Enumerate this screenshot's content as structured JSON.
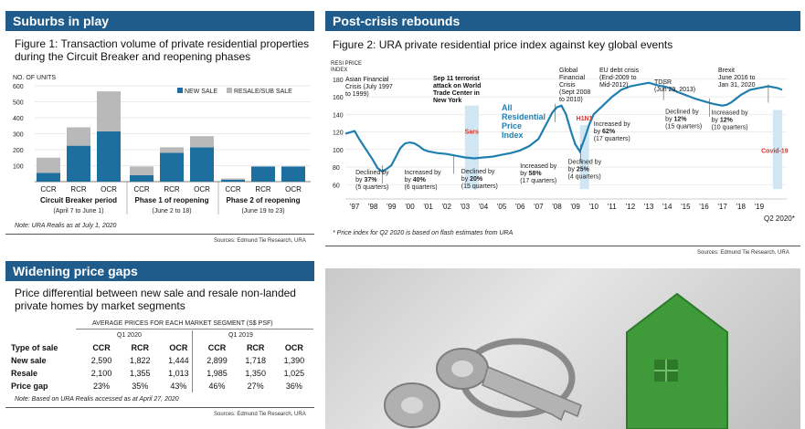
{
  "panel1": {
    "header": "Suburbs in play",
    "title": "Figure 1:  Transaction volume of private residential properties during the Circuit Breaker and reopening phases",
    "ylabel": "NO. OF UNITS",
    "legend_new": "NEW SALE",
    "legend_resale": "RESALE/SUB SALE",
    "groups": [
      {
        "name": "Circuit Breaker period",
        "dates": "(April 7  to June 1)"
      },
      {
        "name": "Phase 1 of reopening",
        "dates": "(June 2 to 18)"
      },
      {
        "name": "Phase 2 of reopening",
        "dates": "(June 19 to 23)"
      }
    ],
    "note": "Note: URA Realis as at July 1, 2020",
    "source": "Sources: Edmund Tie Research, URA"
  },
  "panel2": {
    "header": "Post-crisis rebounds",
    "title": "Figure 2: URA private residential price index against key global events",
    "ylabel": "RESI PRICE INDEX",
    "line_label": "All Residential Price Index",
    "footnote": "* Price index for Q2 2020 is based on flash estimates from URA",
    "source": "Sources: Edmund Tie Research, URA",
    "events": [
      {
        "title": "Asian Financial Crisis",
        "detail": " (July 1997 to 1999)"
      },
      {
        "title": "Sep 11 terrorist attack on World Trade Center in New York",
        "detail": ""
      },
      {
        "title": "Global Financial Crisis",
        "detail": " (Sept 2008 to 2010)"
      },
      {
        "title": "EU debt crisis",
        "detail": " (End-2009 to Mid-2012)"
      },
      {
        "title": "TDSR",
        "detail": " (Jun 29, 2013)"
      },
      {
        "title": "Brexit",
        "detail": " June 2016 to Jan 31, 2020"
      }
    ],
    "shaded_labels": {
      "sars": "Sars",
      "h1n1": "H1N1",
      "covid": "Covid-19"
    },
    "annotations": [
      {
        "pre": "Declined by ",
        "pct": "37%",
        "dur": "(5 quarters)"
      },
      {
        "pre": "Increased by ",
        "pct": "40%",
        "dur": "(6 quarters)"
      },
      {
        "pre": "Declined by ",
        "pct": "20%",
        "dur": "(15 quarters)"
      },
      {
        "pre": "Increased by ",
        "pct": "58%",
        "dur": "(17 quarters)"
      },
      {
        "pre": "Declined by ",
        "pct": "25%",
        "dur": "(4 quarters)"
      },
      {
        "pre": "Increased by ",
        "pct": "62%",
        "dur": "(17 quarters)"
      },
      {
        "pre": "Declined by ",
        "pct": "12%",
        "dur": "(15 quarters)"
      },
      {
        "pre": "Increased by ",
        "pct": "12%",
        "dur": "(10 quarters)"
      }
    ],
    "last_tick": "Q2 2020*"
  },
  "panel3": {
    "header": "Widening price gaps",
    "title": "Price differential between new sale and resale non-landed private homes by market segments",
    "table_caption": "AVERAGE PRICES FOR EACH MARKET SEGMENT (S$ PSF)",
    "periods": [
      "Q1 2020",
      "Q1 2019"
    ],
    "col_headers": [
      "Type of sale",
      "CCR",
      "RCR",
      "OCR",
      "CCR",
      "RCR",
      "OCR"
    ],
    "rows": [
      [
        "New sale",
        "2,590",
        "1,822",
        "1,444",
        "2,899",
        "1,718",
        "1,390"
      ],
      [
        "Resale",
        "2,100",
        "1,355",
        "1,013",
        "1,985",
        "1,350",
        "1,025"
      ],
      [
        "Price gap",
        "23%",
        "35%",
        "43%",
        "46%",
        "27%",
        "36%"
      ]
    ],
    "note": "Note: Based on URA Realis accessed as at April 27, 2020",
    "source": "Sources: Edmund Tie Research, URA"
  },
  "colors": {
    "header": "#1f5c8b",
    "new_sale": "#1d6fa0",
    "resale": "#b9b9b9",
    "line": "#1f7fb0",
    "shade": "#cfe6f3",
    "red": "#e0302a"
  },
  "chart_data": [
    {
      "type": "bar",
      "title": "Figure 1:  Transaction volume of private residential properties during the Circuit Breaker and reopening phases",
      "ylabel": "NO. OF UNITS",
      "ylim": [
        0,
        600
      ],
      "yticks": [
        100,
        200,
        300,
        400,
        500,
        600
      ],
      "categories": [
        "CCR",
        "RCR",
        "OCR",
        "CCR",
        "RCR",
        "OCR",
        "CCR",
        "RCR",
        "OCR"
      ],
      "series": [
        {
          "name": "NEW SALE",
          "values": [
            55,
            225,
            315,
            40,
            180,
            215,
            12,
            95,
            95
          ]
        },
        {
          "name": "RESALE/SUB SALE",
          "values": [
            95,
            115,
            250,
            55,
            35,
            70,
            8,
            0,
            0
          ]
        }
      ]
    },
    {
      "type": "line",
      "title": "Figure 2: URA private residential price index against key global events",
      "ylabel": "RESI PRICE INDEX",
      "ylim": [
        50,
        185
      ],
      "yticks": [
        60,
        80,
        100,
        120,
        140,
        160,
        180
      ],
      "xticks": [
        "'97",
        "'98",
        "'99",
        "'00",
        "'01",
        "'02",
        "'03",
        "'04",
        "'05",
        "'06",
        "'07",
        "'08",
        "'09",
        "'10",
        "'11",
        "'12",
        "'13",
        "'14",
        "'15",
        "'16",
        "'17",
        "'18",
        "'19"
      ],
      "x": [
        1996.5,
        1997,
        1997.25,
        1997.5,
        1997.75,
        1998,
        1998.25,
        1998.5,
        1998.75,
        1999,
        1999.25,
        1999.5,
        1999.75,
        2000,
        2000.25,
        2000.5,
        2000.75,
        2001,
        2001.5,
        2002,
        2002.5,
        2003,
        2003.5,
        2004,
        2004.5,
        2005,
        2005.5,
        2006,
        2006.5,
        2007,
        2007.25,
        2007.5,
        2007.75,
        2008,
        2008.25,
        2008.5,
        2008.75,
        2009,
        2009.25,
        2009.5,
        2009.75,
        2010,
        2010.5,
        2011,
        2011.5,
        2012,
        2012.5,
        2013,
        2013.5,
        2014,
        2014.5,
        2015,
        2015.5,
        2016,
        2016.5,
        2017,
        2017.25,
        2017.5,
        2018,
        2018.5,
        2019,
        2019.5,
        2020,
        2020.25
      ],
      "values": [
        118,
        121,
        112,
        104,
        96,
        88,
        79,
        75,
        78,
        82,
        92,
        102,
        107,
        108,
        107,
        104,
        100,
        98,
        96,
        95,
        93,
        91,
        90,
        91,
        92,
        94,
        96,
        99,
        104,
        112,
        122,
        132,
        142,
        148,
        150,
        140,
        122,
        106,
        98,
        112,
        128,
        140,
        150,
        160,
        168,
        172,
        174,
        176,
        173,
        171,
        166,
        162,
        158,
        155,
        152,
        150,
        151,
        154,
        162,
        168,
        170,
        172,
        170,
        168
      ]
    }
  ]
}
